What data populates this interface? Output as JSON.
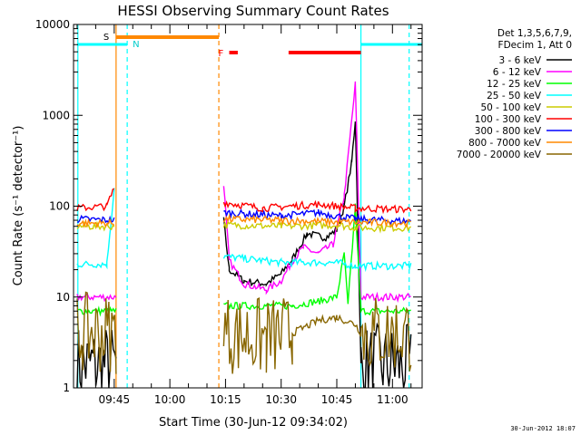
{
  "chart_data": {
    "type": "line",
    "title": "HESSI Observing Summary Count Rates",
    "ylabel": "Count Rate (s⁻¹ detector⁻¹)",
    "xlabel": "Start Time (30-Jun-12 09:34:02)",
    "ylog": true,
    "ylim": [
      1,
      10000
    ],
    "xlim": [
      "09:34:02",
      "11:08:00"
    ],
    "yticks": [
      {
        "value": 1,
        "label": "1"
      },
      {
        "value": 10,
        "label": "10"
      },
      {
        "value": 100,
        "label": "100"
      },
      {
        "value": 1000,
        "label": "1000"
      },
      {
        "value": 10000,
        "label": "10000"
      }
    ],
    "xticks": [
      {
        "minute": 585,
        "label": "09:45"
      },
      {
        "minute": 600,
        "label": "10:00"
      },
      {
        "minute": 615,
        "label": "10:15"
      },
      {
        "minute": 630,
        "label": "10:30"
      },
      {
        "minute": 645,
        "label": "10:45"
      },
      {
        "minute": 660,
        "label": "11:00"
      }
    ],
    "legend": {
      "placement": "right",
      "header": [
        "Det 1,3,5,6,7,9,",
        "FDecim 1, Att 0"
      ],
      "entries": [
        {
          "label": "3 - 6 keV",
          "color": "#000000"
        },
        {
          "label": "6 - 12 keV",
          "color": "#ff00ff"
        },
        {
          "label": "12 - 25 keV",
          "color": "#00ff00"
        },
        {
          "label": "25 - 50 keV",
          "color": "#00ffff"
        },
        {
          "label": "50 - 100 keV",
          "color": "#cccc00"
        },
        {
          "label": "100 - 300 keV",
          "color": "#ff0000"
        },
        {
          "label": "300 - 800 keV",
          "color": "#0000ff"
        },
        {
          "label": "800 - 7000 keV",
          "color": "#ff8800"
        },
        {
          "label": "7000 - 20000 keV",
          "color": "#886600"
        }
      ]
    },
    "series": [
      {
        "name": "3 - 6 keV",
        "color": "#000000",
        "points": [
          [
            575,
            1.8
          ],
          [
            585.5,
            1.8
          ],
          [
            614,
            "gap"
          ],
          [
            614.5,
            70
          ],
          [
            616,
            20
          ],
          [
            620,
            15
          ],
          [
            626,
            14
          ],
          [
            630,
            18
          ],
          [
            633,
            26
          ],
          [
            637,
            50
          ],
          [
            642,
            45
          ],
          [
            645,
            55
          ],
          [
            647,
            100
          ],
          [
            649,
            300
          ],
          [
            650,
            900
          ],
          [
            651.5,
            1.8
          ],
          [
            665,
            1.8
          ]
        ]
      },
      {
        "name": "6 - 12 keV",
        "color": "#ff00ff",
        "points": [
          [
            575,
            10
          ],
          [
            585.5,
            10
          ],
          [
            614,
            "gap"
          ],
          [
            614.5,
            180
          ],
          [
            616,
            25
          ],
          [
            620,
            14
          ],
          [
            626,
            12
          ],
          [
            630,
            15
          ],
          [
            633,
            25
          ],
          [
            636,
            35
          ],
          [
            640,
            30
          ],
          [
            644,
            38
          ],
          [
            647,
            130
          ],
          [
            650,
            2200
          ],
          [
            651.5,
            10
          ],
          [
            665,
            10
          ]
        ]
      },
      {
        "name": "12 - 25 keV",
        "color": "#00ff00",
        "points": [
          [
            575,
            7
          ],
          [
            585.5,
            7
          ],
          [
            614,
            "gap"
          ],
          [
            614.5,
            8
          ],
          [
            633,
            8
          ],
          [
            640,
            9
          ],
          [
            645,
            10
          ],
          [
            647,
            30
          ],
          [
            648,
            8
          ],
          [
            650,
            100
          ],
          [
            651.5,
            7
          ],
          [
            665,
            7
          ]
        ]
      },
      {
        "name": "25 - 50 keV",
        "color": "#00ffff",
        "points": [
          [
            575,
            23
          ],
          [
            583,
            23
          ],
          [
            585,
            160
          ],
          [
            614,
            "gap"
          ],
          [
            614.5,
            28
          ],
          [
            630,
            24
          ],
          [
            645,
            24
          ],
          [
            650,
            22
          ],
          [
            665,
            22
          ]
        ]
      },
      {
        "name": "50 - 100 keV",
        "color": "#cccc00",
        "points": [
          [
            575,
            60
          ],
          [
            585,
            60
          ],
          [
            614,
            "gap"
          ],
          [
            614.5,
            62
          ],
          [
            630,
            60
          ],
          [
            645,
            62
          ],
          [
            650,
            58
          ],
          [
            665,
            58
          ]
        ]
      },
      {
        "name": "100 - 300 keV",
        "color": "#ff0000",
        "points": [
          [
            575,
            95
          ],
          [
            583,
            100
          ],
          [
            585,
            160
          ],
          [
            614,
            "gap"
          ],
          [
            614.5,
            110
          ],
          [
            625,
            95
          ],
          [
            640,
            105
          ],
          [
            650,
            95
          ],
          [
            665,
            92
          ]
        ]
      },
      {
        "name": "300 - 800 keV",
        "color": "#0000ff",
        "points": [
          [
            575,
            72
          ],
          [
            585,
            70
          ],
          [
            614,
            "gap"
          ],
          [
            614.5,
            85
          ],
          [
            630,
            78
          ],
          [
            640,
            85
          ],
          [
            650,
            72
          ],
          [
            665,
            68
          ]
        ]
      },
      {
        "name": "800 - 7000 keV",
        "color": "#ff8800",
        "points": [
          [
            575,
            65
          ],
          [
            585,
            65
          ],
          [
            614,
            "gap"
          ],
          [
            614.5,
            72
          ],
          [
            630,
            70
          ],
          [
            645,
            67
          ],
          [
            665,
            65
          ]
        ]
      },
      {
        "name": "7000 - 20000 keV",
        "color": "#886600",
        "points": [
          [
            575,
            4
          ],
          [
            585.5,
            4
          ],
          [
            614,
            "gap"
          ],
          [
            614.5,
            4
          ],
          [
            626,
            3.5
          ],
          [
            633,
            4
          ],
          [
            640,
            5.5
          ],
          [
            645,
            6
          ],
          [
            650,
            5
          ],
          [
            651.5,
            4
          ],
          [
            665,
            4
          ]
        ]
      }
    ],
    "annotations": {
      "date_stamp": "30-Jun-2012 18:07",
      "orange_bar": {
        "label": "S",
        "from": 585.5,
        "to": 613.2
      },
      "cyan_bar_left": {
        "label": "N",
        "from": 575,
        "to": 588.5
      },
      "cyan_bar_right": {
        "from": 651.5,
        "to": 665
      },
      "red_bars": [
        {
          "label": "F",
          "from": 616,
          "to": 618.3
        },
        {
          "from": 632,
          "to": 651.5
        }
      ],
      "vlines": [
        {
          "minute": 575.2,
          "color": "#00ffff",
          "style": "solid"
        },
        {
          "minute": 585.5,
          "color": "#ff8800",
          "style": "solid"
        },
        {
          "minute": 588.5,
          "color": "#00ffff",
          "style": "dashed"
        },
        {
          "minute": 613.2,
          "color": "#ff8800",
          "style": "dashed"
        },
        {
          "minute": 651.5,
          "color": "#00ffff",
          "style": "solid"
        },
        {
          "minute": 664.5,
          "color": "#00ffff",
          "style": "dashed"
        }
      ]
    }
  }
}
